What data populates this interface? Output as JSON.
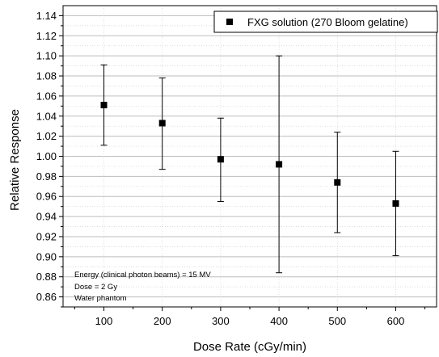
{
  "chart_data": {
    "type": "scatter",
    "title": "",
    "xlabel": "Dose Rate (cGy/min)",
    "ylabel": "Relative Response",
    "xlim": [
      30,
      670
    ],
    "ylim": [
      0.85,
      1.15
    ],
    "xticks": [
      100,
      200,
      300,
      400,
      500,
      600
    ],
    "yticks": [
      0.86,
      0.88,
      0.9,
      0.92,
      0.94,
      0.96,
      0.98,
      1.0,
      1.02,
      1.04,
      1.06,
      1.08,
      1.1,
      1.12,
      1.14
    ],
    "grid": true,
    "legend_position": "top-right",
    "series": [
      {
        "name": "FXG solution (270 Bloom gelatine)",
        "marker": "square",
        "color": "#000000",
        "points": [
          {
            "x": 100,
            "y": 1.051,
            "err_low": 1.011,
            "err_high": 1.091
          },
          {
            "x": 200,
            "y": 1.033,
            "err_low": 0.987,
            "err_high": 1.078
          },
          {
            "x": 300,
            "y": 0.997,
            "err_low": 0.955,
            "err_high": 1.038
          },
          {
            "x": 400,
            "y": 0.992,
            "err_low": 0.884,
            "err_high": 1.1
          },
          {
            "x": 500,
            "y": 0.974,
            "err_low": 0.924,
            "err_high": 1.024
          },
          {
            "x": 600,
            "y": 0.953,
            "err_low": 0.901,
            "err_high": 1.005
          }
        ]
      }
    ],
    "annotations": [
      "Energy (clinical photon beams) = 15 MV",
      "Dose = 2 Gy",
      "Water phantom"
    ]
  }
}
